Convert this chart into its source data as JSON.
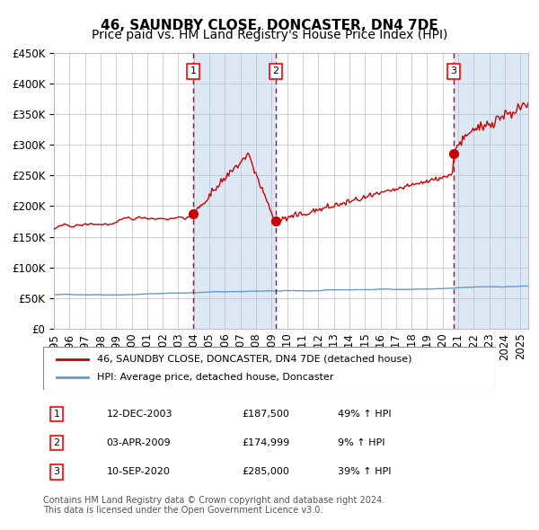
{
  "title": "46, SAUNDBY CLOSE, DONCASTER, DN4 7DE",
  "subtitle": "Price paid vs. HM Land Registry's House Price Index (HPI)",
  "footnote": "Contains HM Land Registry data © Crown copyright and database right 2024.\nThis data is licensed under the Open Government Licence v3.0.",
  "legend_line1": "46, SAUNDBY CLOSE, DONCASTER, DN4 7DE (detached house)",
  "legend_line2": "HPI: Average price, detached house, Doncaster",
  "transactions": [
    {
      "num": 1,
      "date": "12-DEC-2003",
      "price": 187500,
      "pct": "49%",
      "dir": "↑",
      "year": 2003.95
    },
    {
      "num": 2,
      "date": "03-APR-2009",
      "price": 174999,
      "pct": "9%",
      "dir": "↑",
      "year": 2009.25
    },
    {
      "num": 3,
      "date": "10-SEP-2020",
      "price": 285000,
      "pct": "39%",
      "dir": "↑",
      "year": 2020.69
    }
  ],
  "ylim": [
    0,
    450000
  ],
  "yticks": [
    0,
    50000,
    100000,
    150000,
    200000,
    250000,
    300000,
    350000,
    400000,
    450000
  ],
  "xlim_start": 1995.0,
  "xlim_end": 2025.5,
  "hpi_color": "#6699cc",
  "price_color": "#cc0000",
  "marker_color": "#cc0000",
  "vline_color": "#cc0000",
  "shade_color": "#dce9f5",
  "grid_color": "#bbbbcc",
  "bg_color": "#ffffff",
  "title_fontsize": 11,
  "subtitle_fontsize": 10,
  "tick_fontsize": 8.5
}
